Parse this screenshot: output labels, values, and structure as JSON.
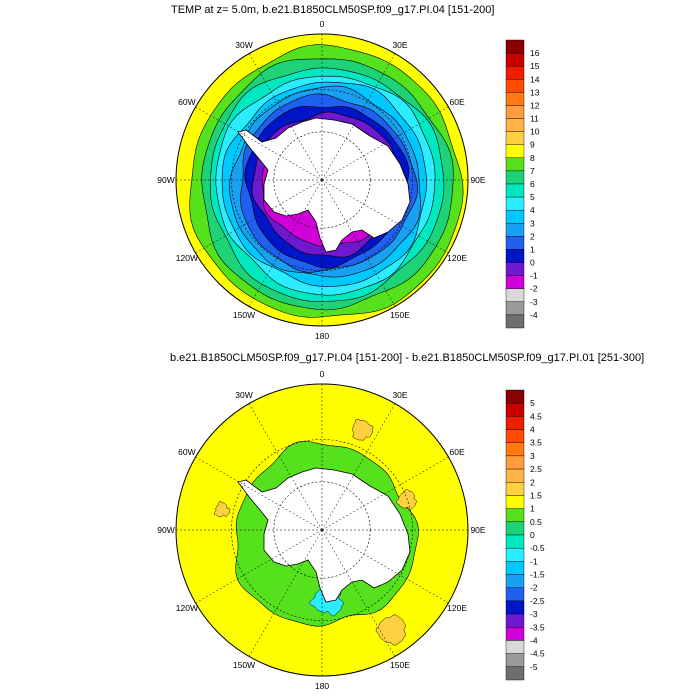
{
  "chart_data": [
    {
      "type": "polar-contour-map",
      "title": "TEMP at z=   5.0m, b.e21.B1850CLM50SP.f09_g17.PI.04 [151-200]",
      "projection": "south-polar-stereographic",
      "lon_labels": [
        "0",
        "30E",
        "60E",
        "90E",
        "120E",
        "150E",
        "180",
        "150W",
        "120W",
        "90W",
        "60W",
        "30W"
      ],
      "colorbar": {
        "levels": [
          "16",
          "15",
          "14",
          "13",
          "12",
          "11",
          "10",
          "9",
          "8",
          "7",
          "6",
          "5",
          "4",
          "3",
          "2",
          "1",
          "0",
          "-1",
          "-2",
          "-3",
          "-4"
        ],
        "colors": [
          "#8b0000",
          "#c80000",
          "#f01e00",
          "#ff4a00",
          "#ff7a10",
          "#ff9d3c",
          "#ffb445",
          "#ffd040",
          "#ffff00",
          "#55e21c",
          "#1dd277",
          "#00e8c0",
          "#2aeeff",
          "#00c8ff",
          "#1aa0f0",
          "#2060f0",
          "#0014c8",
          "#7018d0",
          "#d000d8",
          "#d8d8d8",
          "#9a9a9a",
          "#6e6e6e"
        ]
      },
      "bands": [
        {
          "label": "-1",
          "color": "#d000d8"
        },
        {
          "label": "0",
          "color": "#7018d0"
        },
        {
          "label": "1",
          "color": "#0014c8"
        },
        {
          "label": "2",
          "color": "#2060f0"
        },
        {
          "label": "3",
          "color": "#1aa0f0"
        },
        {
          "label": "4",
          "color": "#00c8ff"
        },
        {
          "label": "5",
          "color": "#2aeeff"
        },
        {
          "label": "6",
          "color": "#00e8c0"
        },
        {
          "label": "7",
          "color": "#1dd277"
        },
        {
          "label": "8",
          "color": "#55e21c"
        },
        {
          "label": "9",
          "color": "#ffff00"
        }
      ]
    },
    {
      "type": "polar-contour-map",
      "title": "b.e21.B1850CLM50SP.f09_g17.PI.04 [151-200] - b.e21.B1850CLM50SP.f09_g17.PI.01 [251-300]",
      "projection": "south-polar-stereographic",
      "lon_labels": [
        "0",
        "30E",
        "60E",
        "90E",
        "120E",
        "150E",
        "180",
        "150W",
        "120W",
        "90W",
        "60W",
        "30W"
      ],
      "colorbar": {
        "levels": [
          "5",
          "4.5",
          "4",
          "3.5",
          "3",
          "2.5",
          "2",
          "1.5",
          "1",
          "0.5",
          "0",
          "-0.5",
          "-1",
          "-1.5",
          "-2",
          "-2.5",
          "-3",
          "-3.5",
          "-4",
          "-4.5",
          "-5"
        ],
        "colors": [
          "#8b0000",
          "#c80000",
          "#f01e00",
          "#ff4a00",
          "#ff7a10",
          "#ff9d3c",
          "#ffb445",
          "#ffd040",
          "#ffff00",
          "#55e21c",
          "#1dd277",
          "#00e8c0",
          "#2aeeff",
          "#00c8ff",
          "#1aa0f0",
          "#2060f0",
          "#0014c8",
          "#7018d0",
          "#d000d8",
          "#d8d8d8",
          "#9a9a9a",
          "#6e6e6e"
        ]
      },
      "dominant_values": {
        "open_ocean": "1 to 1.5",
        "near_antarctica": "0.5 to 1",
        "ross_sea": "-0.5 to 0"
      }
    }
  ]
}
